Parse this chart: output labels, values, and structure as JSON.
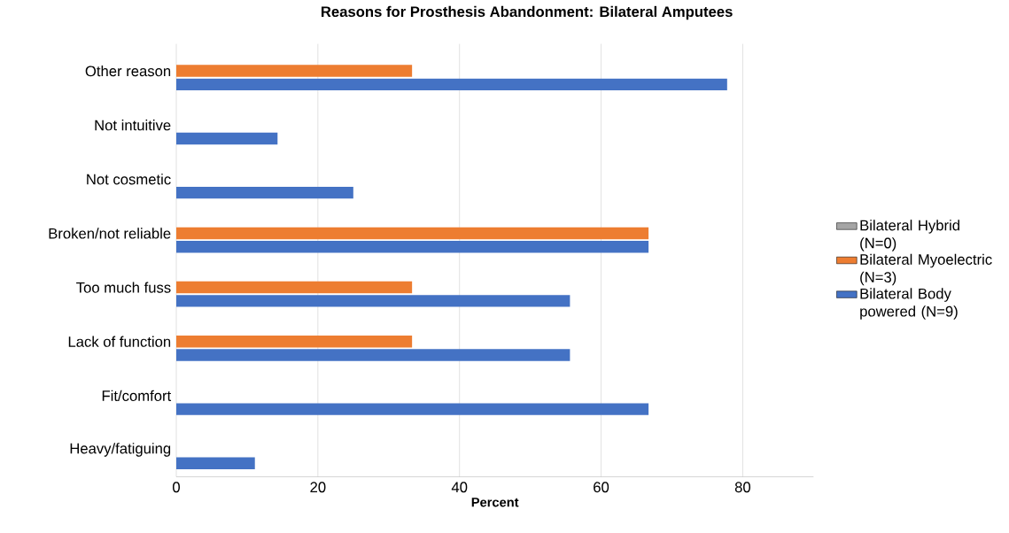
{
  "chart_data": {
    "type": "bar",
    "orientation": "horizontal",
    "title": "Reasons for Prosthesis Abandonment: Bilateral Amputees",
    "xlabel": "Percent",
    "categories": [
      "Other reason",
      "Not intuitive",
      "Not cosmetic",
      "Broken/not reliable",
      "Too much fuss",
      "Lack of function",
      "Fit/comfort",
      "Heavy/fatiguing"
    ],
    "series": [
      {
        "name": "Bilateral Hybrid (N=0)",
        "color": "#a5a5a5",
        "values": [
          null,
          null,
          null,
          null,
          null,
          null,
          null,
          null
        ]
      },
      {
        "name": "Bilateral Myoelectric (N=3)",
        "color": "#ed7d31",
        "values": [
          33.3,
          null,
          null,
          66.7,
          33.3,
          33.3,
          null,
          null
        ]
      },
      {
        "name": "Bilateral Body powered (N=9)",
        "color": "#4472c4",
        "values": [
          77.8,
          14.3,
          25,
          66.7,
          55.6,
          55.6,
          66.7,
          11.1
        ]
      }
    ],
    "xlim": [
      0,
      90
    ],
    "xticks": [
      0,
      20,
      40,
      60,
      80
    ],
    "grid": "x",
    "legend": "right"
  }
}
